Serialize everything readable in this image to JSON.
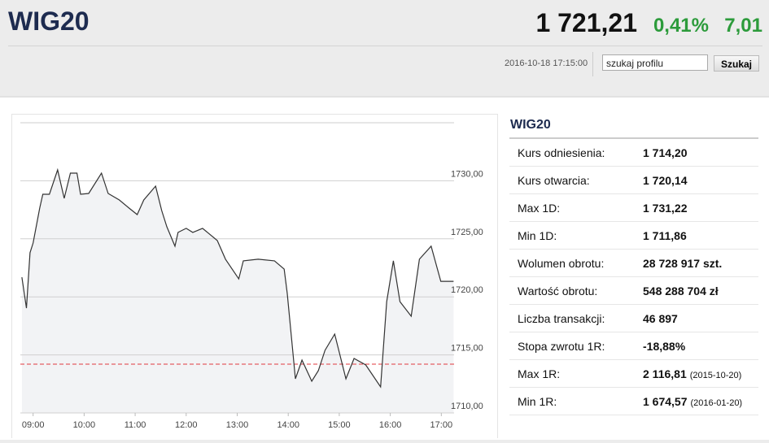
{
  "header": {
    "title": "WIG20",
    "price": "1 721,21",
    "change_pct": "0,41%",
    "change": "7,01",
    "datetime": "2016-10-18 17:15:00",
    "search_placeholder": "szukaj profilu",
    "search_button": "Szukaj"
  },
  "chart_data": {
    "type": "line",
    "x": [
      8.78,
      8.87,
      8.94,
      9.0,
      9.13,
      9.19,
      9.32,
      9.48,
      9.61,
      9.73,
      9.86,
      9.93,
      10.09,
      10.34,
      10.47,
      10.69,
      10.88,
      11.04,
      11.17,
      11.4,
      11.52,
      11.62,
      11.78,
      11.84,
      12.0,
      12.13,
      12.32,
      12.61,
      12.77,
      13.03,
      13.12,
      13.41,
      13.73,
      13.92,
      13.98,
      14.08,
      14.14,
      14.27,
      14.46,
      14.59,
      14.72,
      14.91,
      15.13,
      15.29,
      15.52,
      15.81,
      15.93,
      16.06,
      16.19,
      16.41,
      16.57,
      16.8,
      16.99,
      17.24
    ],
    "values": [
      1721.69,
      1719.03,
      1723.8,
      1724.64,
      1727.65,
      1728.84,
      1728.84,
      1730.94,
      1728.49,
      1730.66,
      1730.66,
      1728.84,
      1728.91,
      1730.66,
      1728.91,
      1728.35,
      1727.65,
      1727.09,
      1728.35,
      1729.54,
      1727.44,
      1726.04,
      1724.36,
      1725.55,
      1725.9,
      1725.55,
      1725.9,
      1724.85,
      1723.24,
      1721.55,
      1723.1,
      1723.24,
      1723.1,
      1722.39,
      1720.29,
      1715.74,
      1712.94,
      1714.55,
      1712.73,
      1713.64,
      1715.39,
      1716.79,
      1712.94,
      1714.69,
      1714.13,
      1712.24,
      1719.59,
      1723.1,
      1719.59,
      1718.33,
      1723.24,
      1724.36,
      1721.34,
      1721.34
    ],
    "color": "#333333",
    "fill": "#f2f3f5",
    "reference_line": 1714.2,
    "reference_color": "#e0393e",
    "xlim": [
      8.75,
      17.25
    ],
    "xticks": [
      {
        "value": 9,
        "label": "09:00"
      },
      {
        "value": 10,
        "label": "10:00"
      },
      {
        "value": 11,
        "label": "11:00"
      },
      {
        "value": 12,
        "label": "12:00"
      },
      {
        "value": 13,
        "label": "13:00"
      },
      {
        "value": 14,
        "label": "14:00"
      },
      {
        "value": 15,
        "label": "15:00"
      },
      {
        "value": 16,
        "label": "16:00"
      },
      {
        "value": 17,
        "label": "17:00"
      }
    ],
    "ylim": [
      1710,
      1735
    ],
    "yticks": [
      {
        "value": 1710,
        "label": "1710,00"
      },
      {
        "value": 1715,
        "label": "1715,00"
      },
      {
        "value": 1720,
        "label": "1720,00"
      },
      {
        "value": 1725,
        "label": "1725,00"
      },
      {
        "value": 1730,
        "label": "1730,00"
      }
    ],
    "grid": true
  },
  "table": {
    "title": "WIG20",
    "rows": [
      [
        "Kurs odniesienia:",
        "1 714,20"
      ],
      [
        "Kurs otwarcia:",
        "1 720,14"
      ],
      [
        "Max 1D:",
        "1 731,22"
      ],
      [
        "Min 1D:",
        "1 711,86"
      ],
      [
        "Wolumen obrotu:",
        "28 728 917 szt."
      ],
      [
        "Wartość obrotu:",
        "548 288 704 zł"
      ],
      [
        "Liczba transakcji:",
        "46 897"
      ],
      [
        "Stopa zwrotu 1R:",
        "-18,88%"
      ],
      [
        "Max 1R:",
        "2 116,81",
        "(2015-10-20)"
      ],
      [
        "Min 1R:",
        "1 674,57",
        "(2016-01-20)"
      ]
    ]
  }
}
